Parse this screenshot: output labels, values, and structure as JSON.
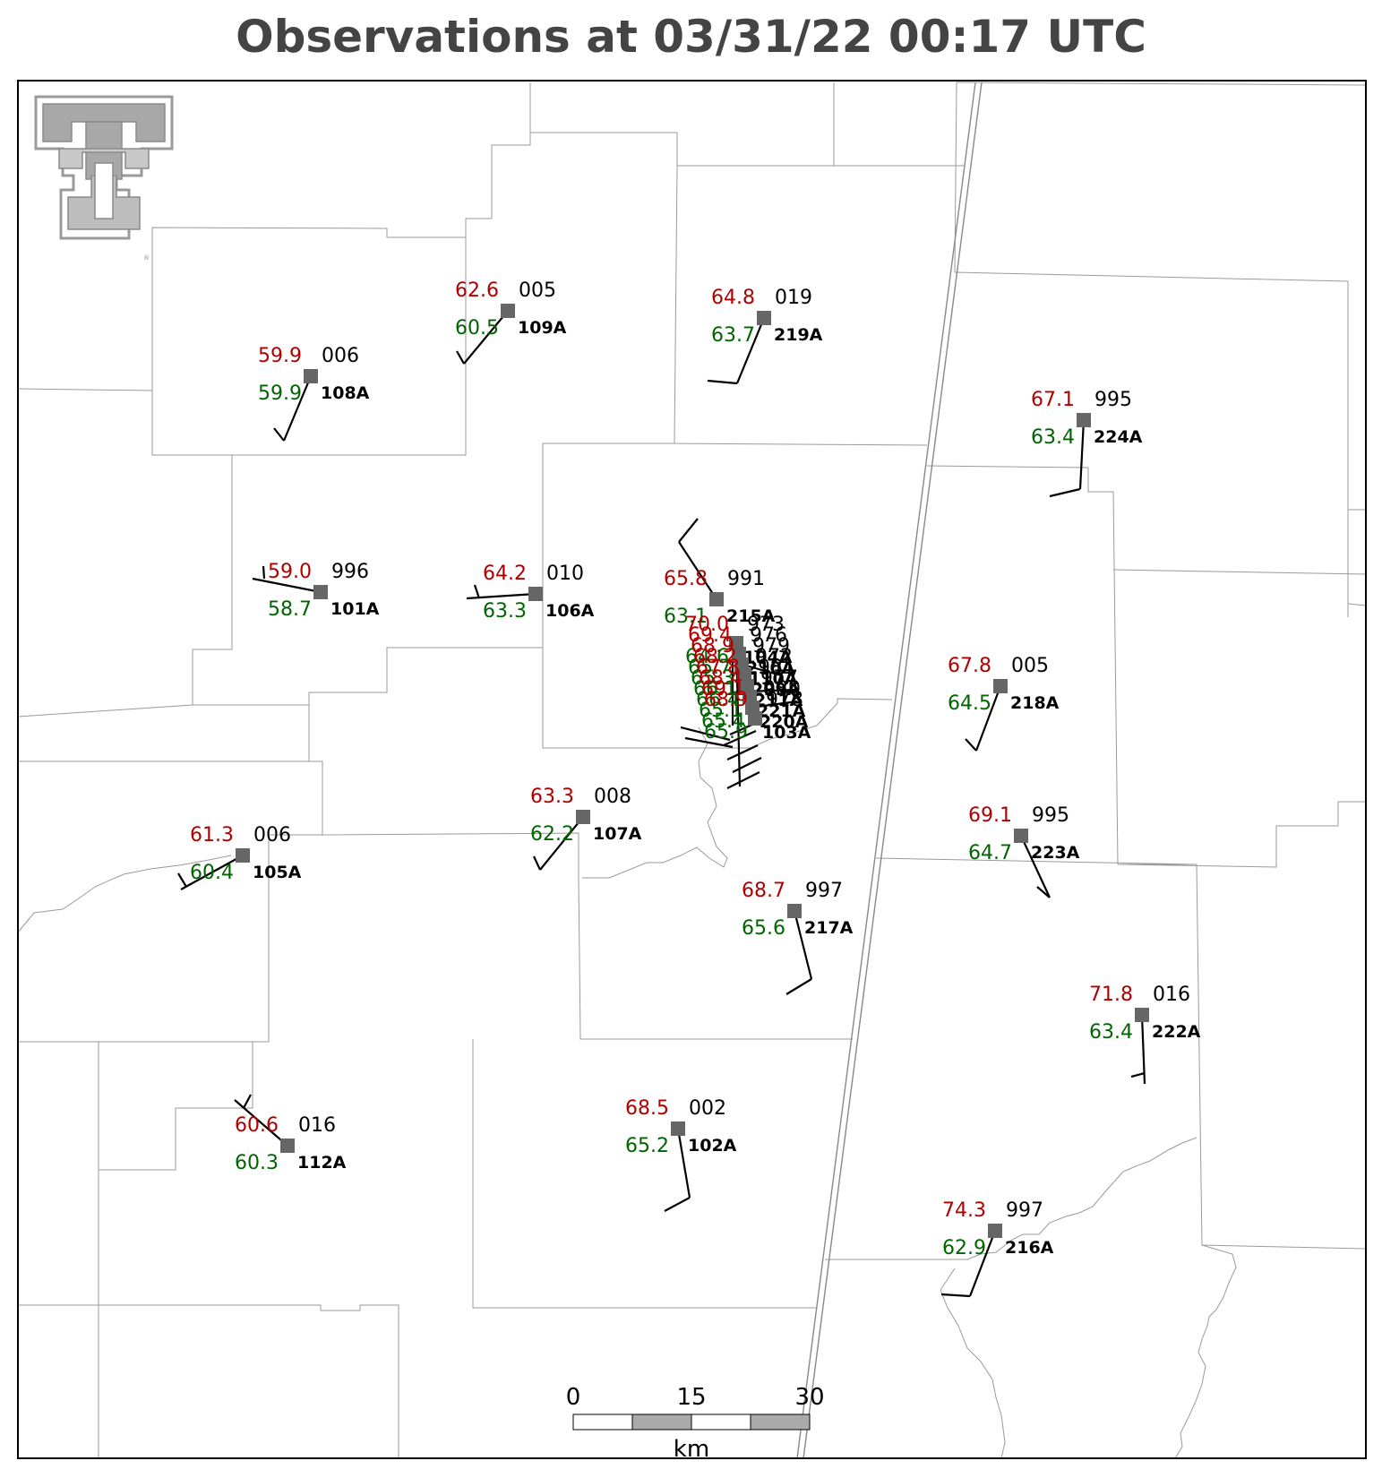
{
  "title": "Observations at 03/31/22 00:17 UTC",
  "scale": {
    "ticks": [
      "0",
      "15",
      "30"
    ],
    "unit": "km"
  },
  "colors": {
    "temperature": "#b00000",
    "dewpoint": "#006400",
    "marker": "#666666"
  },
  "logo": {
    "name": "texas-tech-double-t-logo"
  },
  "stations": [
    {
      "id": "108A",
      "temp": "59.9",
      "dew": "59.9",
      "pres": "006"
    },
    {
      "id": "109A",
      "temp": "62.6",
      "dew": "60.5",
      "pres": "005"
    },
    {
      "id": "219A",
      "temp": "64.8",
      "dew": "63.7",
      "pres": "019"
    },
    {
      "id": "224A",
      "temp": "67.1",
      "dew": "63.4",
      "pres": "995"
    },
    {
      "id": "101A",
      "temp": "59.0",
      "dew": "58.7",
      "pres": "996"
    },
    {
      "id": "106A",
      "temp": "64.2",
      "dew": "63.3",
      "pres": "010"
    },
    {
      "id": "215A",
      "temp": "65.8",
      "dew": "63.1",
      "pres": "991"
    },
    {
      "id": "218A",
      "temp": "67.8",
      "dew": "64.5",
      "pres": "005"
    },
    {
      "id": "107A",
      "temp": "63.3",
      "dew": "62.2",
      "pres": "008"
    },
    {
      "id": "105A",
      "temp": "61.3",
      "dew": "60.4",
      "pres": "006"
    },
    {
      "id": "223A",
      "temp": "69.1",
      "dew": "64.7",
      "pres": "995"
    },
    {
      "id": "217A",
      "temp": "68.7",
      "dew": "65.6",
      "pres": "997"
    },
    {
      "id": "222A",
      "temp": "71.8",
      "dew": "63.4",
      "pres": "016"
    },
    {
      "id": "112A",
      "temp": "60.6",
      "dew": "60.3",
      "pres": "016"
    },
    {
      "id": "102A",
      "temp": "68.5",
      "dew": "65.2",
      "pres": "002"
    },
    {
      "id": "216A",
      "temp": "74.3",
      "dew": "62.9",
      "pres": "997"
    }
  ],
  "cluster": [
    {
      "id": "104A",
      "temp": "70.0",
      "dew": "64.6",
      "pres": "973"
    },
    {
      "id": "210A",
      "temp": "69.4",
      "dew": "65.7",
      "pres": "976"
    },
    {
      "id": "110A",
      "temp": "68.9",
      "dew": "65.3",
      "pres": "979"
    },
    {
      "id": "209A",
      "temp": "68.2",
      "dew": "66.1",
      "pres": "972"
    },
    {
      "id": "211A",
      "temp": "67.8",
      "dew": "66.4",
      "pres": "981"
    },
    {
      "id": "221A",
      "temp": "68.4",
      "dew": "65.1",
      "pres": "977"
    },
    {
      "id": "220A",
      "temp": "69.1",
      "dew": "65.4",
      "pres": "980"
    },
    {
      "id": "103A",
      "temp": "68.9",
      "dew": "65.9",
      "pres": "978"
    }
  ]
}
